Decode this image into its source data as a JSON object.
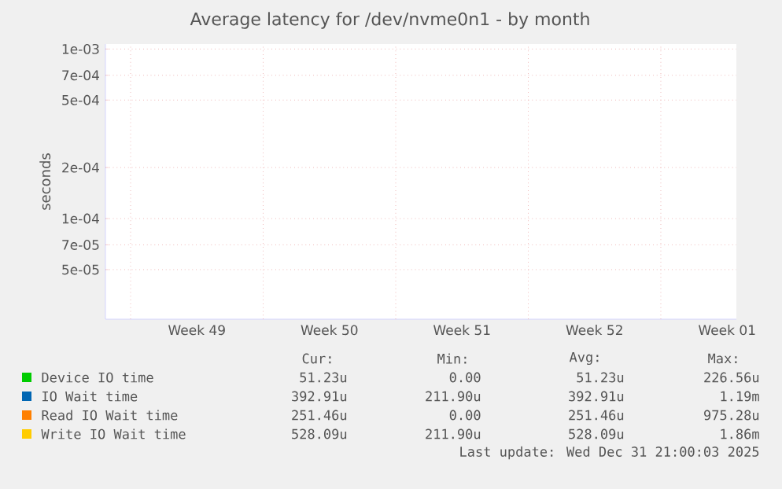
{
  "chart_data": {
    "type": "line",
    "title": "Average latency for /dev/nvme0n1 - by month",
    "ylabel": "seconds",
    "categories": [
      "Week 49",
      "Week 50",
      "Week 51",
      "Week 52",
      "Week 01"
    ],
    "ylim": [
      2.55e-05,
      0.00107
    ],
    "log": "y",
    "yticks": [
      {
        "value": 5e-05,
        "label": "5e-05"
      },
      {
        "value": 7e-05,
        "label": "7e-05"
      },
      {
        "value": 0.0001,
        "label": "1e-04"
      },
      {
        "value": 0.0002,
        "label": "2e-04"
      },
      {
        "value": 0.0005,
        "label": "5e-04"
      },
      {
        "value": 0.0007,
        "label": "7e-04"
      },
      {
        "value": 0.001,
        "label": "1e-03"
      }
    ],
    "grid": true,
    "legend": "bottom",
    "series": [
      {
        "name": "Device IO time",
        "color": "#00cc00",
        "values": [
          null,
          null,
          null,
          null,
          null
        ]
      },
      {
        "name": "IO Wait time",
        "color": "#0066b3",
        "values": [
          null,
          null,
          null,
          null,
          null
        ]
      },
      {
        "name": "Read IO Wait time",
        "color": "#ff8000",
        "values": [
          null,
          null,
          null,
          null,
          null
        ]
      },
      {
        "name": "Write IO Wait time",
        "color": "#ffcc00",
        "values": [
          null,
          null,
          null,
          null,
          null
        ]
      }
    ],
    "annotations": [
      "Cur:",
      "Min:",
      "Avg:",
      "Max:",
      "51.23u",
      "0.00",
      "51.23u",
      "226.56u",
      "392.91u",
      "211.90u",
      "392.91u",
      "1.19m",
      "251.46u",
      "0.00",
      "251.46u",
      "975.28u",
      "528.09u",
      "211.90u",
      "528.09u",
      "1.86m",
      "Last update: Wed Dec 31 21:00:03 2025"
    ]
  }
}
